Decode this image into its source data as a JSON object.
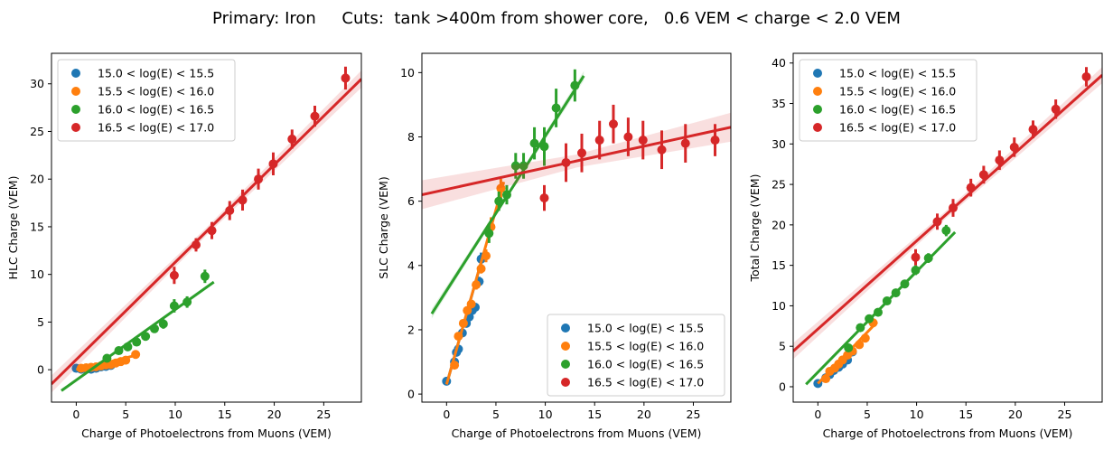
{
  "title": "Primary: Iron     Cuts:  tank >400m from shower core,   0.6 VEM < charge < 2.0 VEM",
  "colors": {
    "series": [
      "#1f77b4",
      "#ff7f0e",
      "#2ca02c",
      "#d62728"
    ]
  },
  "legend_labels": [
    "15.0 < log(E) < 15.5",
    "15.5 < log(E) < 16.0",
    "16.0 < log(E) < 16.5",
    "16.5 < log(E) < 17.0"
  ],
  "chart_data": [
    {
      "type": "scatter",
      "xlabel": "Charge of Photoelectrons from Muons (VEM)",
      "ylabel": "HLC Charge (VEM)",
      "xlim": [
        -2.5,
        28.8
      ],
      "ylim": [
        -3.4,
        33.2
      ],
      "xticks": [
        0,
        5,
        10,
        15,
        20,
        25
      ],
      "yticks": [
        0,
        5,
        10,
        15,
        20,
        25,
        30
      ],
      "legend_position": "upper-left",
      "series": [
        {
          "name": "15.0 < log(E) < 15.5",
          "points": [
            [
              0,
              0.15,
              0.1
            ],
            [
              0.5,
              0.05,
              0.1
            ],
            [
              1,
              0.1,
              0.1
            ],
            [
              1.5,
              0.05,
              0.1
            ],
            [
              2,
              0.15,
              0.1
            ],
            [
              2.5,
              0.3,
              0.1
            ],
            [
              3,
              0.35,
              0.1
            ],
            [
              3.5,
              0.45,
              0.15
            ]
          ],
          "fit": {
            "x": [
              0,
              3.6
            ],
            "y": [
              0.0,
              0.5
            ]
          },
          "band": false
        },
        {
          "name": "15.5 < log(E) < 16.0",
          "points": [
            [
              0.5,
              0.15,
              0.1
            ],
            [
              1,
              0.2,
              0.1
            ],
            [
              1.5,
              0.25,
              0.1
            ],
            [
              2,
              0.3,
              0.1
            ],
            [
              2.5,
              0.4,
              0.1
            ],
            [
              3,
              0.5,
              0.1
            ],
            [
              3.5,
              0.55,
              0.1
            ],
            [
              4,
              0.7,
              0.2
            ],
            [
              4.5,
              0.85,
              0.2
            ],
            [
              5,
              1.0,
              0.2
            ],
            [
              6,
              1.6,
              0.3
            ]
          ],
          "fit": {
            "x": [
              0,
              6
            ],
            "y": [
              0.0,
              1.5
            ]
          },
          "band": false
        },
        {
          "name": "16.0 < log(E) < 16.5",
          "points": [
            [
              3.1,
              1.2,
              0.3
            ],
            [
              4.3,
              2.0,
              0.3
            ],
            [
              5.2,
              2.4,
              0.3
            ],
            [
              6.1,
              2.9,
              0.3
            ],
            [
              7,
              3.5,
              0.3
            ],
            [
              7.9,
              4.3,
              0.4
            ],
            [
              8.8,
              4.8,
              0.5
            ],
            [
              9.9,
              6.7,
              0.7
            ],
            [
              11.2,
              7.1,
              0.6
            ],
            [
              13,
              9.8,
              0.7
            ]
          ],
          "fit": {
            "x": [
              -1.5,
              13.9
            ],
            "y": [
              -2.2,
              9.2
            ]
          },
          "band": false
        },
        {
          "name": "16.5 < log(E) < 17.0",
          "points": [
            [
              9.9,
              9.9,
              0.9
            ],
            [
              12.1,
              13.1,
              0.7
            ],
            [
              13.7,
              14.6,
              0.9
            ],
            [
              15.5,
              16.7,
              1.0
            ],
            [
              16.8,
              17.8,
              1.1
            ],
            [
              18.4,
              20.0,
              1.1
            ],
            [
              19.9,
              21.6,
              1.2
            ],
            [
              21.8,
              24.2,
              1.0
            ],
            [
              24.1,
              26.6,
              1.1
            ],
            [
              27.2,
              30.6,
              1.2
            ]
          ],
          "fit": {
            "x": [
              -2.5,
              28.8
            ],
            "y": [
              -1.5,
              30.5
            ]
          },
          "band": true,
          "band_width": 0.9
        }
      ]
    },
    {
      "type": "scatter",
      "xlabel": "Charge of Photoelectrons from Muons (VEM)",
      "ylabel": "SLC Charge (VEM)",
      "xlim": [
        -2.5,
        28.8
      ],
      "ylim": [
        -0.25,
        10.6
      ],
      "xticks": [
        0,
        5,
        10,
        15,
        20,
        25
      ],
      "yticks": [
        0,
        2,
        4,
        6,
        8,
        10
      ],
      "legend_position": "lower-right",
      "series": [
        {
          "name": "15.0 < log(E) < 15.5",
          "points": [
            [
              0,
              0.4,
              0.1
            ],
            [
              0.8,
              1.0,
              0.1
            ],
            [
              1.0,
              1.3,
              0.1
            ],
            [
              1.2,
              1.4,
              0.1
            ],
            [
              1.6,
              1.9,
              0.1
            ],
            [
              2.0,
              2.2,
              0.1
            ],
            [
              2.3,
              2.4,
              0.1
            ],
            [
              2.6,
              2.6,
              0.1
            ],
            [
              2.9,
              2.7,
              0.1
            ],
            [
              3.3,
              3.5,
              0.15
            ],
            [
              3.5,
              4.2,
              0.2
            ]
          ],
          "fit": {
            "x": [
              0,
              3.6
            ],
            "y": [
              0.3,
              4.2
            ]
          },
          "band": false
        },
        {
          "name": "15.5 < log(E) < 16.0",
          "points": [
            [
              0.8,
              0.9,
              0.1
            ],
            [
              1.2,
              1.8,
              0.1
            ],
            [
              1.7,
              2.2,
              0.1
            ],
            [
              2.1,
              2.6,
              0.1
            ],
            [
              2.5,
              2.8,
              0.1
            ],
            [
              3.0,
              3.4,
              0.15
            ],
            [
              3.5,
              3.9,
              0.15
            ],
            [
              4.0,
              4.3,
              0.2
            ],
            [
              4.5,
              5.2,
              0.3
            ],
            [
              5.5,
              6.4,
              0.3
            ]
          ],
          "fit": {
            "x": [
              0,
              5.8
            ],
            "y": [
              0.3,
              6.6
            ]
          },
          "band": false
        },
        {
          "name": "16.0 < log(E) < 16.5",
          "points": [
            [
              4.3,
              5.0,
              0.3
            ],
            [
              5.3,
              6.0,
              0.3
            ],
            [
              6.1,
              6.2,
              0.3
            ],
            [
              7.0,
              7.1,
              0.4
            ],
            [
              7.8,
              7.1,
              0.4
            ],
            [
              8.9,
              7.8,
              0.5
            ],
            [
              9.9,
              7.7,
              0.6
            ],
            [
              11.1,
              8.9,
              0.6
            ],
            [
              13.0,
              9.6,
              0.5
            ]
          ],
          "fit": {
            "x": [
              -1.5,
              13.9
            ],
            "y": [
              2.5,
              9.9
            ]
          },
          "band": true,
          "band_width": 0.15
        },
        {
          "name": "16.5 < log(E) < 17.0",
          "points": [
            [
              9.9,
              6.1,
              0.4
            ],
            [
              12.1,
              7.2,
              0.6
            ],
            [
              13.7,
              7.5,
              0.6
            ],
            [
              15.5,
              7.9,
              0.6
            ],
            [
              16.9,
              8.4,
              0.6
            ],
            [
              18.4,
              8.0,
              0.6
            ],
            [
              19.9,
              7.9,
              0.6
            ],
            [
              21.8,
              7.6,
              0.6
            ],
            [
              24.2,
              7.8,
              0.6
            ],
            [
              27.2,
              7.9,
              0.5
            ]
          ],
          "fit": {
            "x": [
              -2.5,
              28.8
            ],
            "y": [
              6.2,
              8.3
            ]
          },
          "band": true,
          "band_width": 0.45
        }
      ]
    },
    {
      "type": "scatter",
      "xlabel": "Charge of Photoelectrons from Muons (VEM)",
      "ylabel": "Total Charge (VEM)",
      "xlim": [
        -2.5,
        28.8
      ],
      "ylim": [
        -1.9,
        41.2
      ],
      "xticks": [
        0,
        5,
        10,
        15,
        20,
        25
      ],
      "yticks": [
        0,
        5,
        10,
        15,
        20,
        25,
        30,
        35,
        40
      ],
      "legend_position": "upper-left",
      "series": [
        {
          "name": "15.0 < log(E) < 15.5",
          "points": [
            [
              0,
              0.4,
              0.1
            ],
            [
              0.8,
              1.1,
              0.1
            ],
            [
              1.2,
              1.5,
              0.1
            ],
            [
              1.6,
              2.0,
              0.1
            ],
            [
              2.1,
              2.4,
              0.1
            ],
            [
              2.5,
              2.8,
              0.1
            ],
            [
              3.0,
              3.3,
              0.15
            ],
            [
              3.5,
              4.3,
              0.2
            ]
          ],
          "fit": {
            "x": [
              0,
              3.6
            ],
            "y": [
              0.3,
              4.5
            ]
          },
          "band": false
        },
        {
          "name": "15.5 < log(E) < 16.0",
          "points": [
            [
              0.8,
              1.0,
              0.1
            ],
            [
              1.2,
              1.9,
              0.1
            ],
            [
              1.7,
              2.3,
              0.1
            ],
            [
              2.1,
              2.8,
              0.1
            ],
            [
              2.5,
              3.3,
              0.1
            ],
            [
              3.0,
              3.9,
              0.15
            ],
            [
              3.5,
              4.4,
              0.2
            ],
            [
              4.2,
              5.2,
              0.2
            ],
            [
              4.8,
              6.0,
              0.3
            ],
            [
              5.6,
              7.9,
              0.4
            ]
          ],
          "fit": {
            "x": [
              0,
              6
            ],
            "y": [
              0.4,
              8.0
            ]
          },
          "band": false
        },
        {
          "name": "16.0 < log(E) < 16.5",
          "points": [
            [
              3.1,
              4.8,
              0.3
            ],
            [
              4.3,
              7.3,
              0.3
            ],
            [
              5.2,
              8.4,
              0.3
            ],
            [
              6.1,
              9.2,
              0.4
            ],
            [
              7.0,
              10.6,
              0.4
            ],
            [
              7.9,
              11.6,
              0.5
            ],
            [
              8.8,
              12.7,
              0.5
            ],
            [
              9.9,
              14.4,
              0.6
            ],
            [
              11.2,
              15.9,
              0.6
            ],
            [
              13.0,
              19.3,
              0.7
            ]
          ],
          "fit": {
            "x": [
              -1.2,
              13.9
            ],
            "y": [
              0.3,
              19.1
            ]
          },
          "band": false
        },
        {
          "name": "16.5 < log(E) < 17.0",
          "points": [
            [
              9.9,
              16.0,
              1.0
            ],
            [
              12.1,
              20.4,
              1.0
            ],
            [
              13.7,
              22.1,
              1.1
            ],
            [
              15.5,
              24.6,
              1.1
            ],
            [
              16.8,
              26.2,
              1.1
            ],
            [
              18.4,
              28.0,
              1.2
            ],
            [
              19.9,
              29.6,
              1.2
            ],
            [
              21.8,
              31.8,
              1.1
            ],
            [
              24.1,
              34.3,
              1.2
            ],
            [
              27.2,
              38.3,
              1.2
            ]
          ],
          "fit": {
            "x": [
              -2.5,
              28.8
            ],
            "y": [
              4.4,
              38.5
            ]
          },
          "band": true,
          "band_width": 1.0
        }
      ]
    }
  ]
}
